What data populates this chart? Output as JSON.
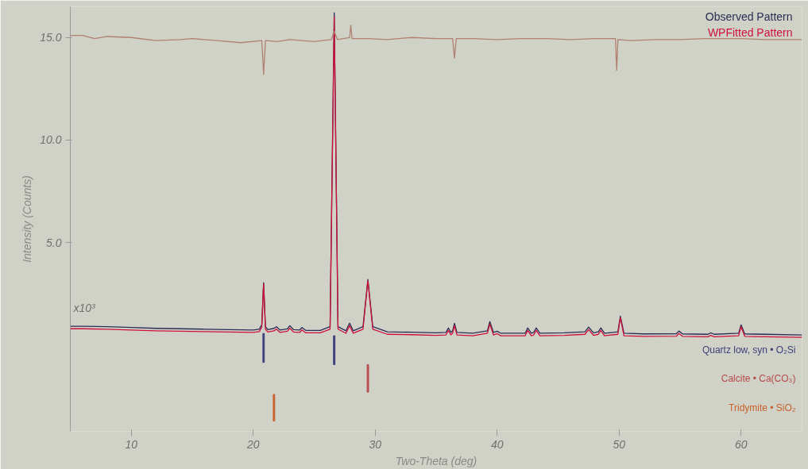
{
  "chart_data": {
    "type": "line",
    "xlabel": "Two-Theta (deg)",
    "ylabel": "Intensity (Counts)",
    "annotations": [
      "x10³"
    ],
    "xlim": [
      5,
      65
    ],
    "ylim": [
      -4.2,
      16.5
    ],
    "xticks": [
      10,
      20,
      30,
      40,
      50,
      60
    ],
    "yticks": [
      {
        "value": 5,
        "label": "5.0"
      },
      {
        "value": 10,
        "label": "10.0"
      },
      {
        "value": 15,
        "label": "15.0"
      }
    ],
    "grid": false,
    "legend": "top right",
    "series": [
      {
        "name": "Observed Pattern",
        "color": "#2a2d55",
        "x": [
          5,
          6,
          8,
          10,
          12,
          14,
          16,
          18,
          20,
          20.5,
          20.7,
          20.85,
          21.0,
          21.2,
          21.7,
          21.9,
          22.2,
          22.8,
          23.0,
          23.3,
          23.8,
          24.0,
          24.3,
          25.5,
          26.3,
          26.64,
          26.95,
          27.6,
          27.9,
          28.2,
          29.0,
          29.4,
          29.8,
          31,
          33,
          35,
          35.8,
          36.0,
          36.2,
          36.35,
          36.5,
          36.7,
          38,
          39.2,
          39.4,
          39.7,
          40.0,
          40.3,
          42.3,
          42.5,
          42.8,
          43.0,
          43.2,
          43.5,
          45.5,
          47.2,
          47.5,
          47.9,
          48.3,
          48.5,
          48.8,
          49.9,
          50.1,
          50.4,
          52,
          54.7,
          54.9,
          55.2,
          57.3,
          57.5,
          57.8,
          59.8,
          60.0,
          60.3,
          62,
          65
        ],
        "values": [
          0.92,
          0.92,
          0.9,
          0.86,
          0.82,
          0.8,
          0.78,
          0.76,
          0.74,
          0.78,
          1.0,
          3.05,
          0.9,
          0.76,
          0.82,
          0.9,
          0.74,
          0.8,
          0.95,
          0.76,
          0.74,
          0.86,
          0.72,
          0.72,
          0.9,
          16.2,
          0.9,
          0.7,
          1.07,
          0.7,
          0.9,
          3.2,
          0.9,
          0.65,
          0.63,
          0.6,
          0.62,
          0.84,
          0.62,
          0.7,
          1.07,
          0.62,
          0.58,
          0.7,
          1.15,
          0.62,
          0.68,
          0.58,
          0.58,
          0.84,
          0.58,
          0.62,
          0.84,
          0.58,
          0.6,
          0.65,
          0.88,
          0.6,
          0.65,
          0.84,
          0.58,
          0.65,
          1.41,
          0.58,
          0.55,
          0.56,
          0.69,
          0.55,
          0.53,
          0.6,
          0.53,
          0.58,
          0.99,
          0.55,
          0.53,
          0.5
        ]
      },
      {
        "name": "WPFitted Pattern",
        "color": "#d0103a",
        "x": [
          5,
          6,
          8,
          10,
          12,
          14,
          16,
          18,
          20,
          20.5,
          20.7,
          20.85,
          21.0,
          21.2,
          21.7,
          21.9,
          22.2,
          22.8,
          23.0,
          23.3,
          23.8,
          24.0,
          24.3,
          25.5,
          26.3,
          26.64,
          26.95,
          27.6,
          27.9,
          28.2,
          29.0,
          29.4,
          29.8,
          31,
          33,
          35,
          35.8,
          36.0,
          36.2,
          36.35,
          36.5,
          36.7,
          38,
          39.2,
          39.4,
          39.7,
          40.0,
          40.3,
          42.3,
          42.5,
          42.8,
          43.0,
          43.2,
          43.5,
          45.5,
          47.2,
          47.5,
          47.9,
          48.3,
          48.5,
          48.8,
          49.9,
          50.1,
          50.4,
          52,
          54.7,
          54.9,
          55.2,
          57.3,
          57.5,
          57.8,
          59.8,
          60.0,
          60.3,
          62,
          65
        ],
        "values": [
          0.8,
          0.8,
          0.78,
          0.74,
          0.7,
          0.68,
          0.66,
          0.64,
          0.62,
          0.66,
          0.88,
          3.0,
          0.78,
          0.64,
          0.7,
          0.78,
          0.62,
          0.68,
          0.83,
          0.64,
          0.62,
          0.74,
          0.6,
          0.6,
          0.78,
          16.0,
          0.78,
          0.58,
          0.95,
          0.58,
          0.78,
          3.15,
          0.78,
          0.53,
          0.51,
          0.48,
          0.5,
          0.72,
          0.5,
          0.58,
          0.95,
          0.5,
          0.46,
          0.58,
          1.03,
          0.5,
          0.56,
          0.46,
          0.46,
          0.72,
          0.46,
          0.5,
          0.72,
          0.46,
          0.48,
          0.53,
          0.76,
          0.48,
          0.53,
          0.72,
          0.46,
          0.53,
          1.35,
          0.46,
          0.43,
          0.44,
          0.57,
          0.43,
          0.41,
          0.48,
          0.41,
          0.46,
          0.9,
          0.43,
          0.41,
          0.38
        ]
      },
      {
        "color": "#b08070",
        "x": [
          5,
          6,
          7,
          8,
          10,
          12,
          14,
          15,
          17,
          19,
          20.7,
          20.85,
          21.0,
          22,
          23,
          24,
          25,
          26.4,
          26.64,
          26.9,
          27.9,
          28.0,
          28.1,
          29.4,
          31,
          33,
          35,
          36.35,
          36.5,
          36.65,
          38,
          40,
          42,
          44,
          46,
          48,
          49.7,
          49.8,
          49.9,
          51,
          53,
          55,
          57,
          60,
          62,
          65
        ],
        "values": [
          15.1,
          15.1,
          14.95,
          15.05,
          15.0,
          14.85,
          14.9,
          14.95,
          14.85,
          14.75,
          14.85,
          13.2,
          14.85,
          14.8,
          14.9,
          14.85,
          14.8,
          14.9,
          15.3,
          14.9,
          15.0,
          15.6,
          14.95,
          14.95,
          14.9,
          15.0,
          14.95,
          14.95,
          14.0,
          14.95,
          14.95,
          14.9,
          14.95,
          14.95,
          14.9,
          14.95,
          14.95,
          13.4,
          14.9,
          14.85,
          14.9,
          14.9,
          14.95,
          14.95,
          14.9,
          14.9
        ]
      },
      {
        "type": "bar",
        "name": "Quartz low, syn • O₂Si",
        "color": "#3c3f78",
        "x": [
          20.85,
          26.64
        ],
        "base": [
          -0.84,
          -0.95
        ],
        "values": [
          1.41,
          1.41
        ]
      },
      {
        "type": "bar",
        "name": "Calcite • Ca(CO₃)",
        "color": "#b84a4a",
        "x": [
          29.4
        ],
        "base": [
          -2.29
        ],
        "values": [
          1.34
        ]
      },
      {
        "type": "bar",
        "name": "Tridymite • SiO₂",
        "color": "#c8602a",
        "x": [
          21.7
        ],
        "base": [
          -3.7
        ],
        "values": [
          1.3
        ]
      }
    ]
  }
}
